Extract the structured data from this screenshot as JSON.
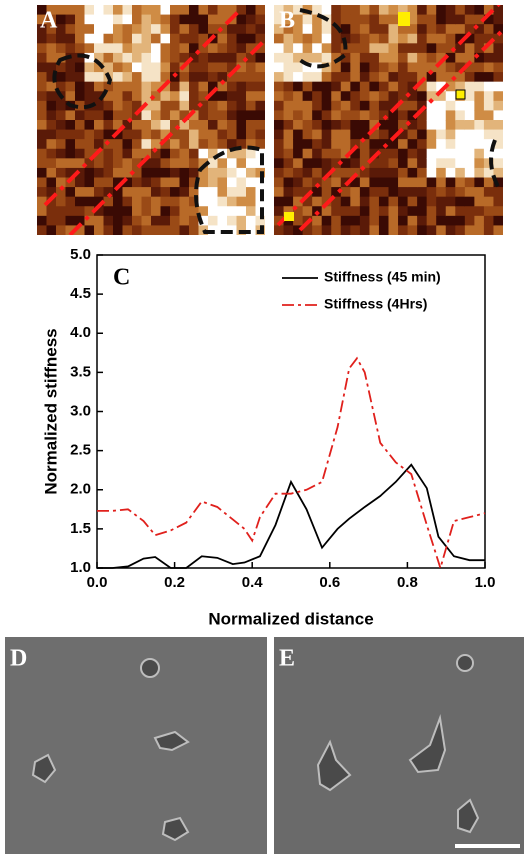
{
  "panel_labels": [
    "A",
    "B",
    "C",
    "D",
    "E"
  ],
  "chart_data": {
    "type": "line",
    "xlabel": "Normalized distance",
    "ylabel": "Normalized stiffness",
    "xlim": [
      0,
      1
    ],
    "ylim": [
      1,
      5
    ],
    "xticks": [
      {
        "value": 0,
        "label": "0.0"
      },
      {
        "value": 0.2,
        "label": "0.2"
      },
      {
        "value": 0.4,
        "label": "0.4"
      },
      {
        "value": 0.6,
        "label": "0.6"
      },
      {
        "value": 0.8,
        "label": "0.8"
      },
      {
        "value": 1,
        "label": "1.0"
      }
    ],
    "yticks": [
      {
        "value": 1,
        "label": "1.0"
      },
      {
        "value": 1.5,
        "label": "1.5"
      },
      {
        "value": 2,
        "label": "2.0"
      },
      {
        "value": 2.5,
        "label": "2.5"
      },
      {
        "value": 3,
        "label": "3.0"
      },
      {
        "value": 3.5,
        "label": "3.5"
      },
      {
        "value": 4,
        "label": "4.0"
      },
      {
        "value": 4.5,
        "label": "4.5"
      },
      {
        "value": 5,
        "label": "5.0"
      }
    ],
    "legend": "upper right",
    "series": [
      {
        "name": "Stiffness (45 min)",
        "color": "#000000",
        "line_style": "solid",
        "x": [
          0,
          0.04,
          0.08,
          0.12,
          0.15,
          0.19,
          0.23,
          0.27,
          0.31,
          0.35,
          0.38,
          0.42,
          0.46,
          0.5,
          0.54,
          0.58,
          0.62,
          0.65,
          0.69,
          0.73,
          0.77,
          0.81,
          0.85,
          0.88,
          0.92,
          0.96,
          1
        ],
        "values": [
          1.0,
          1.0,
          1.02,
          1.12,
          1.14,
          1.0,
          1.0,
          1.15,
          1.13,
          1.05,
          1.07,
          1.15,
          1.55,
          2.1,
          1.75,
          1.26,
          1.5,
          1.63,
          1.78,
          1.92,
          2.1,
          2.32,
          2.02,
          1.4,
          1.15,
          1.1,
          1.1
        ]
      },
      {
        "name": "Stiffness (4Hrs)",
        "color": "#e0201c",
        "line_style": "dash-dot",
        "x": [
          0,
          0.04,
          0.08,
          0.12,
          0.15,
          0.19,
          0.23,
          0.27,
          0.31,
          0.35,
          0.38,
          0.4,
          0.42,
          0.46,
          0.5,
          0.54,
          0.58,
          0.62,
          0.65,
          0.67,
          0.69,
          0.73,
          0.77,
          0.81,
          0.85,
          0.885,
          0.92,
          0.96,
          1
        ],
        "values": [
          1.73,
          1.73,
          1.75,
          1.6,
          1.42,
          1.48,
          1.58,
          1.85,
          1.78,
          1.62,
          1.5,
          1.35,
          1.65,
          1.95,
          1.95,
          2.0,
          2.1,
          2.8,
          3.55,
          3.68,
          3.5,
          2.6,
          2.35,
          2.2,
          1.55,
          1.0,
          1.6,
          1.65,
          1.7
        ]
      }
    ]
  }
}
